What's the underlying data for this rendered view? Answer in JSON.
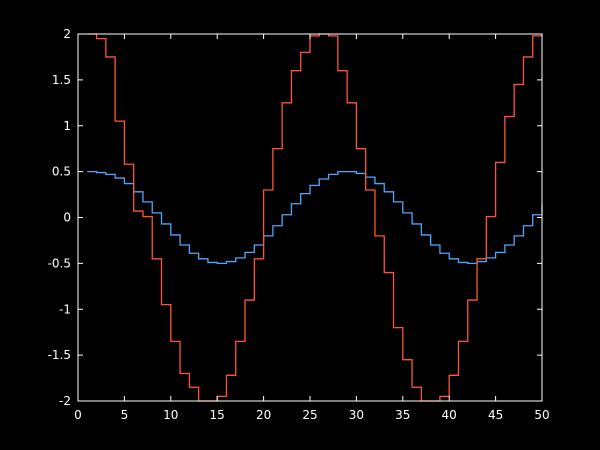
{
  "chart_data": {
    "type": "line",
    "step": true,
    "title": "",
    "xlabel": "",
    "ylabel": "",
    "xlim": [
      0,
      50
    ],
    "ylim": [
      -2,
      2
    ],
    "xticks": [
      0,
      5,
      10,
      15,
      20,
      25,
      30,
      35,
      40,
      45,
      50
    ],
    "yticks": [
      -2,
      -1.5,
      -1,
      -0.5,
      0,
      0.5,
      1,
      1.5,
      2
    ],
    "ytick_labels": [
      "-2",
      "-1.5",
      "-1",
      "-0.5",
      "0",
      "0.5",
      "1",
      "1.5",
      "2"
    ],
    "grid": false,
    "background": "#000000",
    "axis_color": "#ffffff",
    "x": [
      1,
      2,
      3,
      4,
      5,
      6,
      7,
      8,
      9,
      10,
      11,
      12,
      13,
      14,
      15,
      16,
      17,
      18,
      19,
      20,
      21,
      22,
      23,
      24,
      25,
      26,
      27,
      28,
      29,
      30,
      31,
      32,
      33,
      34,
      35,
      36,
      37,
      38,
      39,
      40,
      41,
      42,
      43,
      44,
      45,
      46,
      47,
      48,
      49,
      50
    ],
    "series": [
      {
        "color": "#4da6ff",
        "values": [
          0.5,
          0.49,
          0.47,
          0.43,
          0.37,
          0.28,
          0.17,
          0.05,
          -0.07,
          -0.19,
          -0.3,
          -0.39,
          -0.45,
          -0.49,
          -0.5,
          -0.48,
          -0.44,
          -0.38,
          -0.3,
          -0.2,
          -0.09,
          0.03,
          0.15,
          0.26,
          0.35,
          0.42,
          0.47,
          0.5,
          0.5,
          0.48,
          0.44,
          0.37,
          0.28,
          0.17,
          0.05,
          -0.07,
          -0.19,
          -0.3,
          -0.39,
          -0.45,
          -0.49,
          -0.5,
          -0.48,
          -0.44,
          -0.38,
          -0.3,
          -0.2,
          -0.09,
          0.03,
          0.15
        ]
      },
      {
        "color": "#ff5533",
        "values": [
          2,
          1.95,
          1.75,
          1.05,
          0.58,
          0.07,
          0.01,
          -0.45,
          -0.95,
          -1.35,
          -1.7,
          -1.85,
          -2,
          -2,
          -1.95,
          -1.72,
          -1.35,
          -0.9,
          -0.45,
          0.3,
          0.75,
          1.25,
          1.6,
          1.8,
          1.98,
          2,
          1.98,
          1.6,
          1.25,
          0.75,
          0.3,
          -0.2,
          -0.6,
          -1.2,
          -1.55,
          -1.85,
          -2,
          -2,
          -1.95,
          -1.72,
          -1.35,
          -0.9,
          -0.45,
          0.01,
          0.6,
          1.1,
          1.45,
          1.75,
          1.98,
          2
        ]
      }
    ]
  }
}
